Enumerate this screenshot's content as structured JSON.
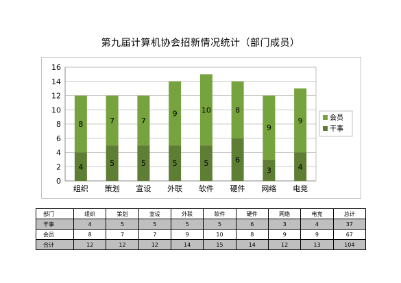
{
  "title": "第九届计算机协会招新情况统计（部门成员）",
  "chart_data": {
    "type": "bar",
    "stacked": true,
    "title": "第九届计算机协会招新情况统计（部门成员）",
    "categories": [
      "组织",
      "策划",
      "宣设",
      "外联",
      "软件",
      "硬件",
      "网络",
      "电竞"
    ],
    "series": [
      {
        "name": "干事",
        "values": [
          4,
          5,
          5,
          5,
          5,
          6,
          3,
          4
        ],
        "color": "#5e7e34"
      },
      {
        "name": "会员",
        "values": [
          8,
          7,
          7,
          9,
          10,
          8,
          9,
          9
        ],
        "color": "#76a33d"
      }
    ],
    "ylim": [
      0,
      16
    ],
    "yticks": [
      0,
      2,
      4,
      6,
      8,
      10,
      12,
      14,
      16
    ],
    "grid": true,
    "legend": "right"
  },
  "table": {
    "header": [
      "部门",
      "组织",
      "策划",
      "宣设",
      "外联",
      "软件",
      "硬件",
      "网络",
      "电竞",
      "总计"
    ],
    "rows": [
      [
        "干事",
        "4",
        "5",
        "5",
        "5",
        "5",
        "6",
        "3",
        "4",
        "37"
      ],
      [
        "会员",
        "8",
        "7",
        "7",
        "9",
        "10",
        "8",
        "9",
        "9",
        "67"
      ],
      [
        "合计",
        "12",
        "12",
        "12",
        "14",
        "15",
        "14",
        "12",
        "13",
        "104"
      ]
    ]
  }
}
